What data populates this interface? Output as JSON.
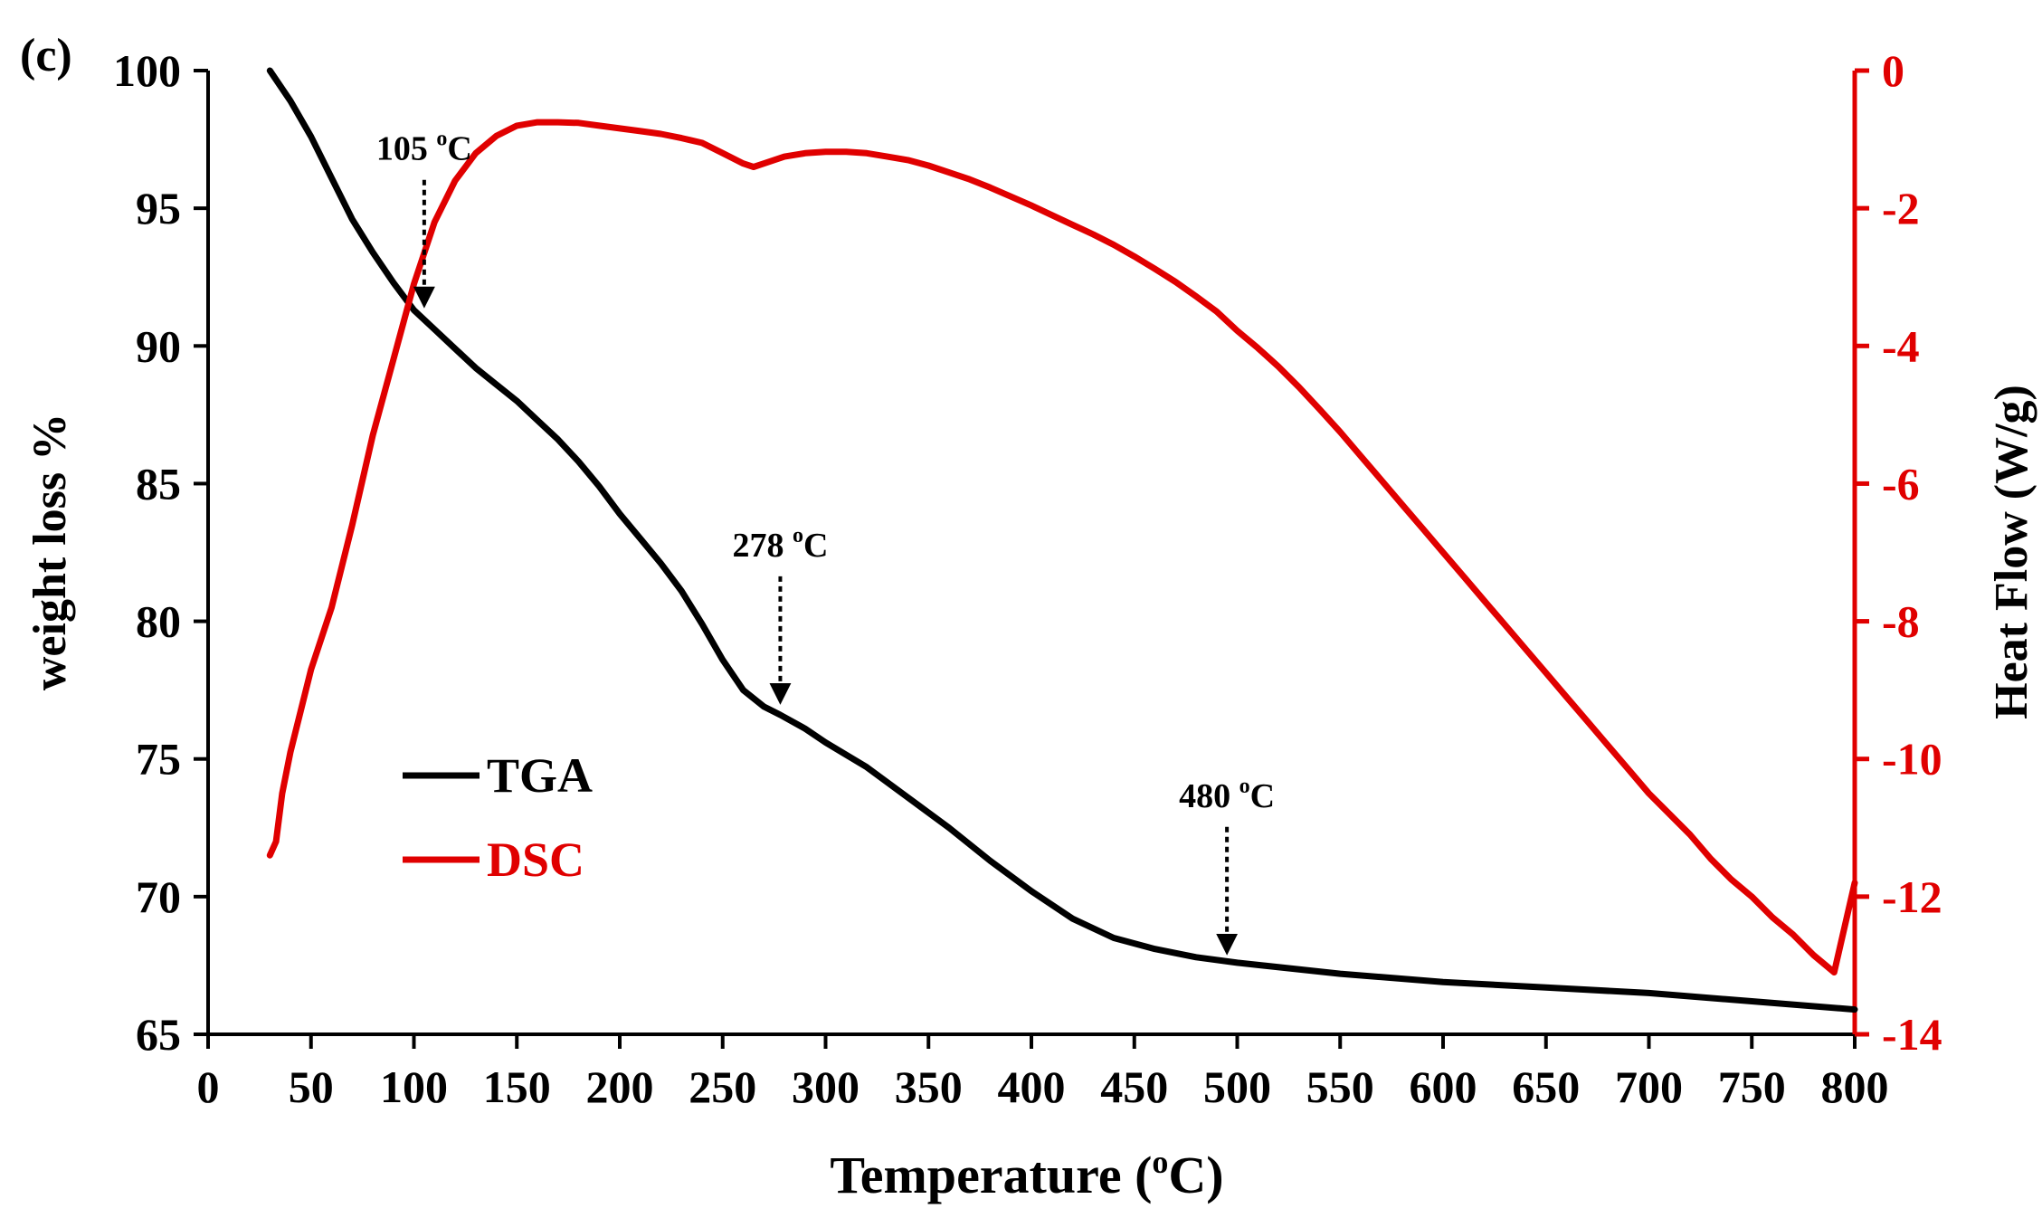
{
  "panel_label": "(c)",
  "colors": {
    "tga": "#000000",
    "dsc": "#e00000",
    "axis_left": "#000000",
    "axis_right": "#e00000"
  },
  "chart_data": {
    "type": "line",
    "xlabel": "Temperature (",
    "xlabel_sup": "o",
    "xlabel_end": "C)",
    "ylabel_left": "weight loss %",
    "ylabel_right": "Heat Flow (W/g)",
    "xlim": [
      0,
      800
    ],
    "ylim_left": [
      65,
      100
    ],
    "ylim_right": [
      -14,
      0
    ],
    "xticks": [
      0,
      50,
      100,
      150,
      200,
      250,
      300,
      350,
      400,
      450,
      500,
      550,
      600,
      650,
      700,
      750,
      800
    ],
    "yticks_left": [
      65,
      70,
      75,
      80,
      85,
      90,
      95,
      100
    ],
    "yticks_right": [
      -14,
      -12,
      -10,
      -8,
      -6,
      -4,
      -2,
      0
    ],
    "legend": [
      {
        "name": "TGA",
        "color": "#000000"
      },
      {
        "name": "DSC",
        "color": "#e00000"
      }
    ],
    "legend_position": "lower-left",
    "series": [
      {
        "name": "TGA",
        "axis": "left",
        "x": [
          30,
          40,
          50,
          60,
          70,
          80,
          90,
          100,
          110,
          120,
          130,
          140,
          150,
          160,
          170,
          180,
          190,
          200,
          210,
          220,
          230,
          240,
          250,
          260,
          270,
          278,
          290,
          300,
          320,
          340,
          360,
          380,
          400,
          420,
          440,
          460,
          480,
          500,
          550,
          600,
          650,
          700,
          750,
          800
        ],
        "y": [
          100,
          98.9,
          97.6,
          96.1,
          94.6,
          93.4,
          92.3,
          91.3,
          90.6,
          89.9,
          89.2,
          88.6,
          88.0,
          87.3,
          86.6,
          85.8,
          84.9,
          83.9,
          83.0,
          82.1,
          81.1,
          79.9,
          78.6,
          77.5,
          76.9,
          76.6,
          76.1,
          75.6,
          74.7,
          73.6,
          72.5,
          71.3,
          70.2,
          69.2,
          68.5,
          68.1,
          67.8,
          67.6,
          67.2,
          66.9,
          66.7,
          66.5,
          66.2,
          65.9
        ]
      },
      {
        "name": "DSC",
        "axis": "right",
        "x": [
          30,
          33,
          36,
          40,
          45,
          50,
          60,
          70,
          80,
          90,
          100,
          110,
          120,
          130,
          140,
          150,
          160,
          170,
          180,
          190,
          200,
          210,
          220,
          230,
          240,
          250,
          260,
          265,
          270,
          280,
          290,
          300,
          310,
          320,
          330,
          340,
          350,
          360,
          370,
          380,
          390,
          400,
          410,
          420,
          430,
          440,
          450,
          460,
          470,
          480,
          490,
          500,
          510,
          520,
          530,
          540,
          550,
          560,
          570,
          580,
          590,
          600,
          610,
          620,
          630,
          640,
          650,
          660,
          670,
          680,
          690,
          700,
          710,
          720,
          730,
          740,
          750,
          760,
          770,
          780,
          790,
          800
        ],
        "y": [
          -11.4,
          -11.2,
          -10.5,
          -9.9,
          -9.3,
          -8.7,
          -7.8,
          -6.6,
          -5.3,
          -4.2,
          -3.1,
          -2.2,
          -1.6,
          -1.2,
          -0.95,
          -0.8,
          -0.75,
          -0.75,
          -0.76,
          -0.8,
          -0.84,
          -0.88,
          -0.92,
          -0.98,
          -1.05,
          -1.2,
          -1.35,
          -1.4,
          -1.35,
          -1.25,
          -1.2,
          -1.18,
          -1.18,
          -1.2,
          -1.25,
          -1.3,
          -1.38,
          -1.48,
          -1.58,
          -1.7,
          -1.83,
          -1.96,
          -2.1,
          -2.24,
          -2.38,
          -2.53,
          -2.7,
          -2.88,
          -3.07,
          -3.28,
          -3.5,
          -3.78,
          -4.03,
          -4.3,
          -4.6,
          -4.92,
          -5.25,
          -5.6,
          -5.95,
          -6.3,
          -6.65,
          -7.0,
          -7.35,
          -7.7,
          -8.05,
          -8.4,
          -8.75,
          -9.1,
          -9.45,
          -9.8,
          -10.15,
          -10.5,
          -10.8,
          -11.1,
          -11.45,
          -11.75,
          -12.0,
          -12.3,
          -12.55,
          -12.85,
          -13.1,
          -11.8
        ]
      }
    ],
    "annotations": [
      {
        "label": "105 ",
        "sup": "o",
        "unit": "C",
        "x": 105,
        "y": 91.3
      },
      {
        "label": "278 ",
        "sup": "o",
        "unit": "C",
        "x": 278,
        "y": 76.9
      },
      {
        "label": "480 ",
        "sup": "o",
        "unit": "C",
        "x": 495,
        "y": 67.8
      }
    ]
  }
}
